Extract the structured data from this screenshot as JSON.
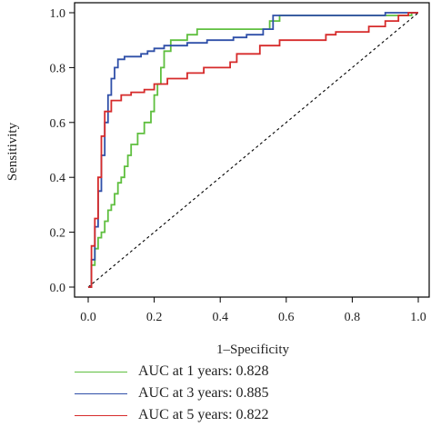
{
  "chart_data": {
    "type": "line",
    "xlabel": "1–Specificity",
    "ylabel": "Sensitivity",
    "xlim": [
      0,
      1
    ],
    "ylim": [
      0,
      1
    ],
    "x_ticks": [
      "0.0",
      "0.2",
      "0.4",
      "0.6",
      "0.8",
      "1.0"
    ],
    "y_ticks": [
      "0.0",
      "0.2",
      "0.4",
      "0.6",
      "0.8",
      "1.0"
    ],
    "grid": false,
    "legend_position": "bottom",
    "reference_line": {
      "style": "dashed",
      "color": "#000000",
      "points": [
        [
          0,
          0
        ],
        [
          1,
          1
        ]
      ]
    },
    "series": [
      {
        "name": "AUC at 1 years: 0.828",
        "color": "#5fbf3f",
        "points": [
          [
            0,
            0
          ],
          [
            0.01,
            0
          ],
          [
            0.01,
            0.08
          ],
          [
            0.02,
            0.08
          ],
          [
            0.02,
            0.14
          ],
          [
            0.03,
            0.14
          ],
          [
            0.03,
            0.18
          ],
          [
            0.04,
            0.18
          ],
          [
            0.04,
            0.2
          ],
          [
            0.05,
            0.2
          ],
          [
            0.05,
            0.24
          ],
          [
            0.06,
            0.24
          ],
          [
            0.06,
            0.28
          ],
          [
            0.07,
            0.28
          ],
          [
            0.07,
            0.3
          ],
          [
            0.08,
            0.3
          ],
          [
            0.08,
            0.34
          ],
          [
            0.09,
            0.34
          ],
          [
            0.09,
            0.38
          ],
          [
            0.1,
            0.38
          ],
          [
            0.1,
            0.4
          ],
          [
            0.11,
            0.4
          ],
          [
            0.11,
            0.44
          ],
          [
            0.12,
            0.44
          ],
          [
            0.12,
            0.48
          ],
          [
            0.13,
            0.48
          ],
          [
            0.13,
            0.52
          ],
          [
            0.15,
            0.52
          ],
          [
            0.15,
            0.56
          ],
          [
            0.17,
            0.56
          ],
          [
            0.17,
            0.6
          ],
          [
            0.19,
            0.6
          ],
          [
            0.19,
            0.64
          ],
          [
            0.2,
            0.64
          ],
          [
            0.2,
            0.7
          ],
          [
            0.21,
            0.7
          ],
          [
            0.21,
            0.74
          ],
          [
            0.22,
            0.74
          ],
          [
            0.22,
            0.8
          ],
          [
            0.23,
            0.8
          ],
          [
            0.23,
            0.86
          ],
          [
            0.25,
            0.86
          ],
          [
            0.25,
            0.9
          ],
          [
            0.3,
            0.9
          ],
          [
            0.3,
            0.92
          ],
          [
            0.33,
            0.92
          ],
          [
            0.33,
            0.94
          ],
          [
            0.55,
            0.94
          ],
          [
            0.55,
            0.97
          ],
          [
            0.58,
            0.97
          ],
          [
            0.58,
            0.99
          ],
          [
            0.98,
            0.99
          ],
          [
            0.98,
            1
          ],
          [
            1,
            1
          ]
        ]
      },
      {
        "name": "AUC at 3 years: 0.885",
        "color": "#2f4fa8",
        "points": [
          [
            0,
            0
          ],
          [
            0.01,
            0
          ],
          [
            0.01,
            0.1
          ],
          [
            0.02,
            0.1
          ],
          [
            0.02,
            0.22
          ],
          [
            0.03,
            0.22
          ],
          [
            0.03,
            0.35
          ],
          [
            0.04,
            0.35
          ],
          [
            0.04,
            0.48
          ],
          [
            0.05,
            0.48
          ],
          [
            0.05,
            0.6
          ],
          [
            0.06,
            0.6
          ],
          [
            0.06,
            0.7
          ],
          [
            0.07,
            0.7
          ],
          [
            0.07,
            0.76
          ],
          [
            0.08,
            0.76
          ],
          [
            0.08,
            0.8
          ],
          [
            0.09,
            0.8
          ],
          [
            0.09,
            0.83
          ],
          [
            0.11,
            0.83
          ],
          [
            0.11,
            0.84
          ],
          [
            0.16,
            0.84
          ],
          [
            0.16,
            0.85
          ],
          [
            0.18,
            0.85
          ],
          [
            0.18,
            0.86
          ],
          [
            0.2,
            0.86
          ],
          [
            0.2,
            0.87
          ],
          [
            0.23,
            0.87
          ],
          [
            0.23,
            0.88
          ],
          [
            0.3,
            0.88
          ],
          [
            0.3,
            0.89
          ],
          [
            0.36,
            0.89
          ],
          [
            0.36,
            0.9
          ],
          [
            0.44,
            0.9
          ],
          [
            0.44,
            0.91
          ],
          [
            0.48,
            0.91
          ],
          [
            0.48,
            0.92
          ],
          [
            0.53,
            0.92
          ],
          [
            0.53,
            0.94
          ],
          [
            0.56,
            0.94
          ],
          [
            0.56,
            0.99
          ],
          [
            0.9,
            0.99
          ],
          [
            0.9,
            1
          ],
          [
            1,
            1
          ]
        ]
      },
      {
        "name": "AUC at 5 years: 0.822",
        "color": "#d62a2a",
        "points": [
          [
            0,
            0
          ],
          [
            0.01,
            0
          ],
          [
            0.01,
            0.15
          ],
          [
            0.02,
            0.15
          ],
          [
            0.02,
            0.25
          ],
          [
            0.03,
            0.25
          ],
          [
            0.03,
            0.4
          ],
          [
            0.04,
            0.4
          ],
          [
            0.04,
            0.55
          ],
          [
            0.05,
            0.55
          ],
          [
            0.05,
            0.64
          ],
          [
            0.07,
            0.64
          ],
          [
            0.07,
            0.68
          ],
          [
            0.1,
            0.68
          ],
          [
            0.1,
            0.7
          ],
          [
            0.13,
            0.7
          ],
          [
            0.13,
            0.71
          ],
          [
            0.17,
            0.71
          ],
          [
            0.17,
            0.72
          ],
          [
            0.2,
            0.72
          ],
          [
            0.2,
            0.74
          ],
          [
            0.24,
            0.74
          ],
          [
            0.24,
            0.76
          ],
          [
            0.3,
            0.76
          ],
          [
            0.3,
            0.78
          ],
          [
            0.35,
            0.78
          ],
          [
            0.35,
            0.8
          ],
          [
            0.43,
            0.8
          ],
          [
            0.43,
            0.82
          ],
          [
            0.45,
            0.82
          ],
          [
            0.45,
            0.85
          ],
          [
            0.52,
            0.85
          ],
          [
            0.52,
            0.88
          ],
          [
            0.58,
            0.88
          ],
          [
            0.58,
            0.9
          ],
          [
            0.72,
            0.9
          ],
          [
            0.72,
            0.92
          ],
          [
            0.75,
            0.92
          ],
          [
            0.75,
            0.93
          ],
          [
            0.85,
            0.93
          ],
          [
            0.85,
            0.95
          ],
          [
            0.9,
            0.95
          ],
          [
            0.9,
            0.97
          ],
          [
            0.94,
            0.97
          ],
          [
            0.94,
            0.99
          ],
          [
            0.97,
            0.99
          ],
          [
            0.97,
            1
          ],
          [
            1,
            1
          ]
        ]
      }
    ]
  }
}
